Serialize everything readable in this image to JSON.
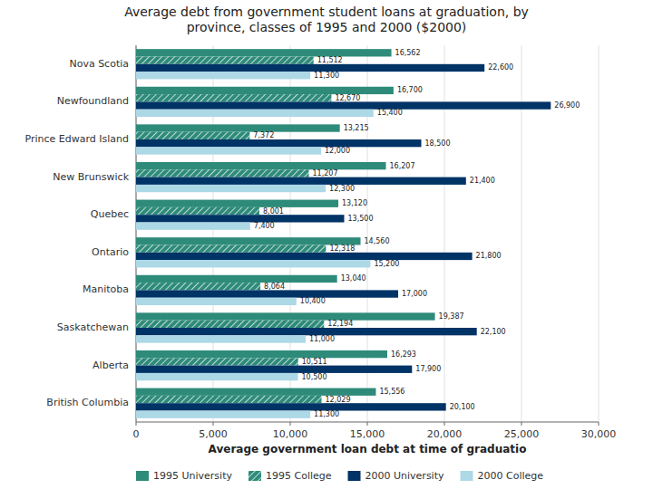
{
  "chart_data": {
    "type": "bar",
    "orientation": "horizontal",
    "title": "Average debt from government student loans at graduation, by\nprovince, classes of 1995 and 2000 ($2000)",
    "x_label": "Average government loan debt at time of graduatio",
    "categories": [
      "Nova Scotia",
      "Newfoundland",
      "Prince Edward Island",
      "New Brunswick",
      "Quebec",
      "Ontario",
      "Manitoba",
      "Saskatchewan",
      "Alberta",
      "British Columbia"
    ],
    "series": [
      {
        "name": "1995 University",
        "color": "#2e8b7a",
        "values": [
          16562,
          16700,
          13215,
          16207,
          13120,
          14560,
          13040,
          19387,
          16293,
          15556
        ],
        "value_labels": [
          "16,562",
          "16,700",
          "13,215",
          "16,207",
          "13,120",
          "14,560",
          "13,040",
          "19,387",
          "16,293",
          "15,556"
        ]
      },
      {
        "name": "1995 College",
        "color": "#2e8b7a",
        "values": [
          11512,
          12670,
          7372,
          11207,
          8001,
          12318,
          8064,
          12194,
          10511,
          12029
        ],
        "value_labels": [
          "11,512",
          "12,670",
          "7,372",
          "11,207",
          "8,001",
          "12,318",
          "8,064",
          "12,194",
          "10,511",
          "12,029"
        ]
      },
      {
        "name": "2000 University",
        "color": "#003366",
        "values": [
          22600,
          26900,
          18500,
          21400,
          13500,
          21800,
          17000,
          22100,
          17900,
          20100
        ],
        "value_labels": [
          "22,600",
          "26,900",
          "18,500",
          "21,400",
          "13,500",
          "21,800",
          "17,000",
          "22,100",
          "17,900",
          "20,100"
        ]
      },
      {
        "name": "2000 College",
        "color": "#add8e6",
        "values": [
          11300,
          15400,
          12000,
          12300,
          7400,
          15200,
          10400,
          11000,
          10500,
          11300
        ],
        "value_labels": [
          "11,300",
          "15,400",
          "12,000",
          "12,300",
          "7,400",
          "15,200",
          "10,400",
          "11,000",
          "10,500",
          "11,300"
        ]
      }
    ],
    "xlim": [
      0,
      30000
    ],
    "xticks": [
      0,
      {
        "value": 5000,
        "label": "5,000"
      },
      {
        "value": 10000,
        "label": "10,000"
      },
      {
        "value": 15000,
        "label": "15,000"
      },
      {
        "value": 20000,
        "label": "20,000"
      },
      {
        "value": 25000,
        "label": "25,000"
      },
      {
        "value": 30000,
        "label": "30,000"
      }
    ],
    "grid": true,
    "legend": "lower left",
    "data_labels": true
  }
}
